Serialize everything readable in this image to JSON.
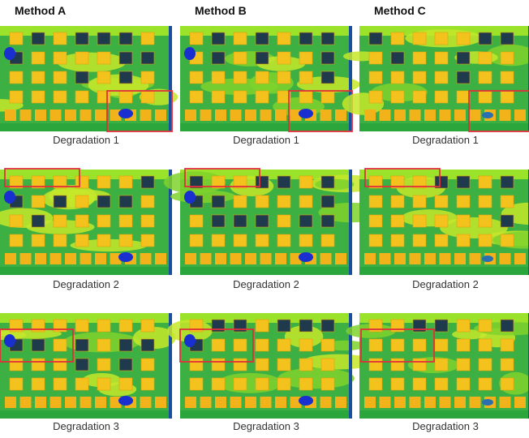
{
  "headers": [
    "Method A",
    "Method B",
    "Method C"
  ],
  "rows": [
    [
      "Degradation 1",
      "Degradation 1",
      "Degradation 1"
    ],
    [
      "Degradation 2",
      "Degradation 2",
      "Degradation 2"
    ],
    [
      "Degradation 3",
      "Degradation 3",
      "Degradation 3"
    ]
  ]
}
